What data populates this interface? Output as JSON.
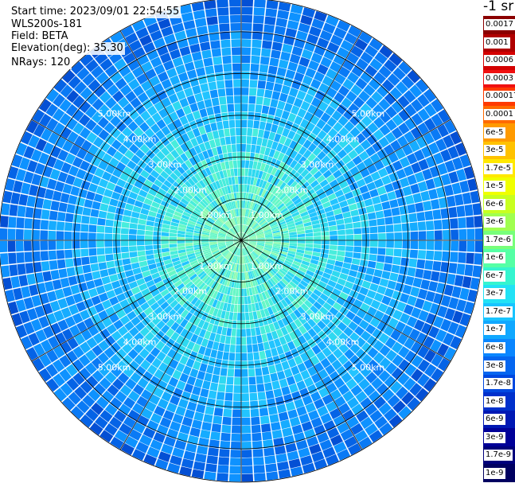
{
  "info": {
    "start_time": "Start time: 2023/09/01 22:54:55",
    "instrument": "WLS200s-181",
    "field": "Field: BETA",
    "elevation": "Elevation(deg): 35.30",
    "nrays": "NRays: 120"
  },
  "colorbar": {
    "unit_label": "-1 sr",
    "labels": [
      "0.0017",
      "0.001",
      "0.0006",
      "0.0003",
      "0.00017",
      "0.0001",
      "6e-5",
      "3e-5",
      "1.7e-5",
      "1e-5",
      "6e-6",
      "3e-6",
      "1.7e-6",
      "1e-6",
      "6e-7",
      "3e-7",
      "1.7e-7",
      "1e-7",
      "6e-8",
      "3e-8",
      "1.7e-8",
      "1e-8",
      "6e-9",
      "3e-9",
      "1.7e-9",
      "1e-9"
    ],
    "colors": [
      "#8b0000",
      "#b00000",
      "#d40000",
      "#f01010",
      "#ff3a00",
      "#ff6a00",
      "#ff9a00",
      "#ffc200",
      "#ffe800",
      "#f0ff00",
      "#c8ff20",
      "#a0ff50",
      "#78ff7a",
      "#55ffa5",
      "#35f5cf",
      "#22e2f5",
      "#18c4ff",
      "#10a8ff",
      "#0a86ff",
      "#0566f0",
      "#0048e0",
      "#0030cc",
      "#0018b4",
      "#000098",
      "#00007c",
      "#000060"
    ]
  },
  "ring_labels": [
    "1.00km",
    "2.00km",
    "3.00km",
    "4.00km",
    "5.00km"
  ],
  "plot": {
    "nrays": 120,
    "max_range_km": 5.8,
    "ring_ranges_km": [
      1,
      2,
      3,
      4,
      5,
      5.8
    ],
    "spoke_azimuths_deg": [
      0,
      30,
      60,
      90,
      120,
      150,
      180,
      210,
      240,
      270,
      300,
      330
    ],
    "background_color": "#ffffff",
    "grid_color": "#000000"
  }
}
